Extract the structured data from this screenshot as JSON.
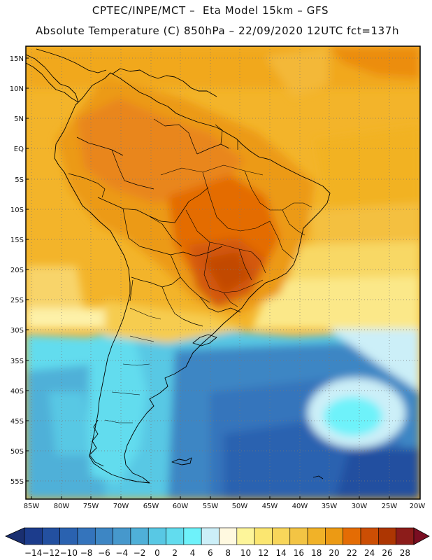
{
  "title_line1": "CPTEC/INPE/MCT –  Eta Model 15km – GFS",
  "title_line2": "Absolute Temperature (C) 850hPa – 22/09/2020 12UTC fct=137h",
  "lat_labels": [
    "15N",
    "10N",
    "5N",
    "EQ",
    "5S",
    "10S",
    "15S",
    "20S",
    "25S",
    "30S",
    "35S",
    "40S",
    "45S",
    "50S",
    "55S"
  ],
  "lon_labels": [
    "85W",
    "80W",
    "75W",
    "70W",
    "65W",
    "60W",
    "55W",
    "50W",
    "45W",
    "40W",
    "35W",
    "30W",
    "25W",
    "20W"
  ],
  "colorbar": {
    "labels": [
      "-14",
      "-12",
      "-10",
      "-8",
      "-6",
      "-4",
      "-2",
      "0",
      "2",
      "4",
      "6",
      "8",
      "10",
      "12",
      "14",
      "16",
      "18",
      "20",
      "22",
      "24",
      "26",
      "28"
    ],
    "colors": [
      "#1c3c8c",
      "#2350a0",
      "#2a62b0",
      "#3474bc",
      "#3d86c4",
      "#4698cc",
      "#4fb0d8",
      "#58c8e4",
      "#62dcee",
      "#6ef2fa",
      "#cceff8",
      "#fff9e0",
      "#fdf59a",
      "#fbe670",
      "#f8d65a",
      "#f3c444",
      "#f1b228",
      "#ec9a14",
      "#e46c04",
      "#cc4e04",
      "#ad3602",
      "#8c1c1a"
    ],
    "under_color": "#1a2f70",
    "over_color": "#7a0e22"
  }
}
